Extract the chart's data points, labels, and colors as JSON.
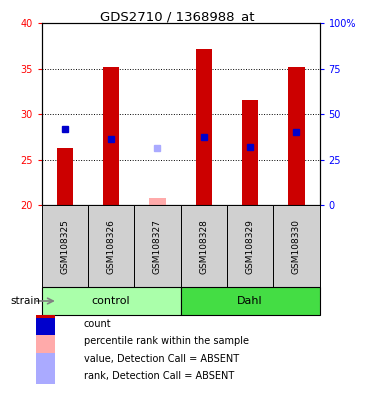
{
  "title": "GDS2710 / 1368988_at",
  "samples": [
    "GSM108325",
    "GSM108326",
    "GSM108327",
    "GSM108328",
    "GSM108329",
    "GSM108330"
  ],
  "ylim_left": [
    20,
    40
  ],
  "ylim_right": [
    0,
    100
  ],
  "yticks_left": [
    20,
    25,
    30,
    35,
    40
  ],
  "yticks_right": [
    0,
    25,
    50,
    75,
    100
  ],
  "ytick_labels_right": [
    "0",
    "25",
    "50",
    "75",
    "100%"
  ],
  "bar_bottom": 20,
  "bar_values": [
    26.3,
    35.2,
    20.8,
    37.1,
    31.5,
    35.2
  ],
  "bar_absent": [
    false,
    false,
    true,
    false,
    false,
    false
  ],
  "rank_values": [
    28.4,
    27.3,
    26.3,
    27.5,
    26.4,
    28.0
  ],
  "rank_absent": [
    false,
    false,
    true,
    false,
    false,
    false
  ],
  "bar_color_present": "#cc0000",
  "bar_color_absent": "#ffaaaa",
  "rank_color_present": "#0000cc",
  "rank_color_absent": "#aaaaff",
  "bar_width": 0.35,
  "rank_marker_size": 5,
  "bg_color_sample": "#d0d0d0",
  "group_color_control": "#aaffaa",
  "group_color_dahl": "#44dd44",
  "legend_items": [
    {
      "label": "count",
      "color": "#cc0000"
    },
    {
      "label": "percentile rank within the sample",
      "color": "#0000cc"
    },
    {
      "label": "value, Detection Call = ABSENT",
      "color": "#ffaaaa"
    },
    {
      "label": "rank, Detection Call = ABSENT",
      "color": "#aaaaff"
    }
  ]
}
